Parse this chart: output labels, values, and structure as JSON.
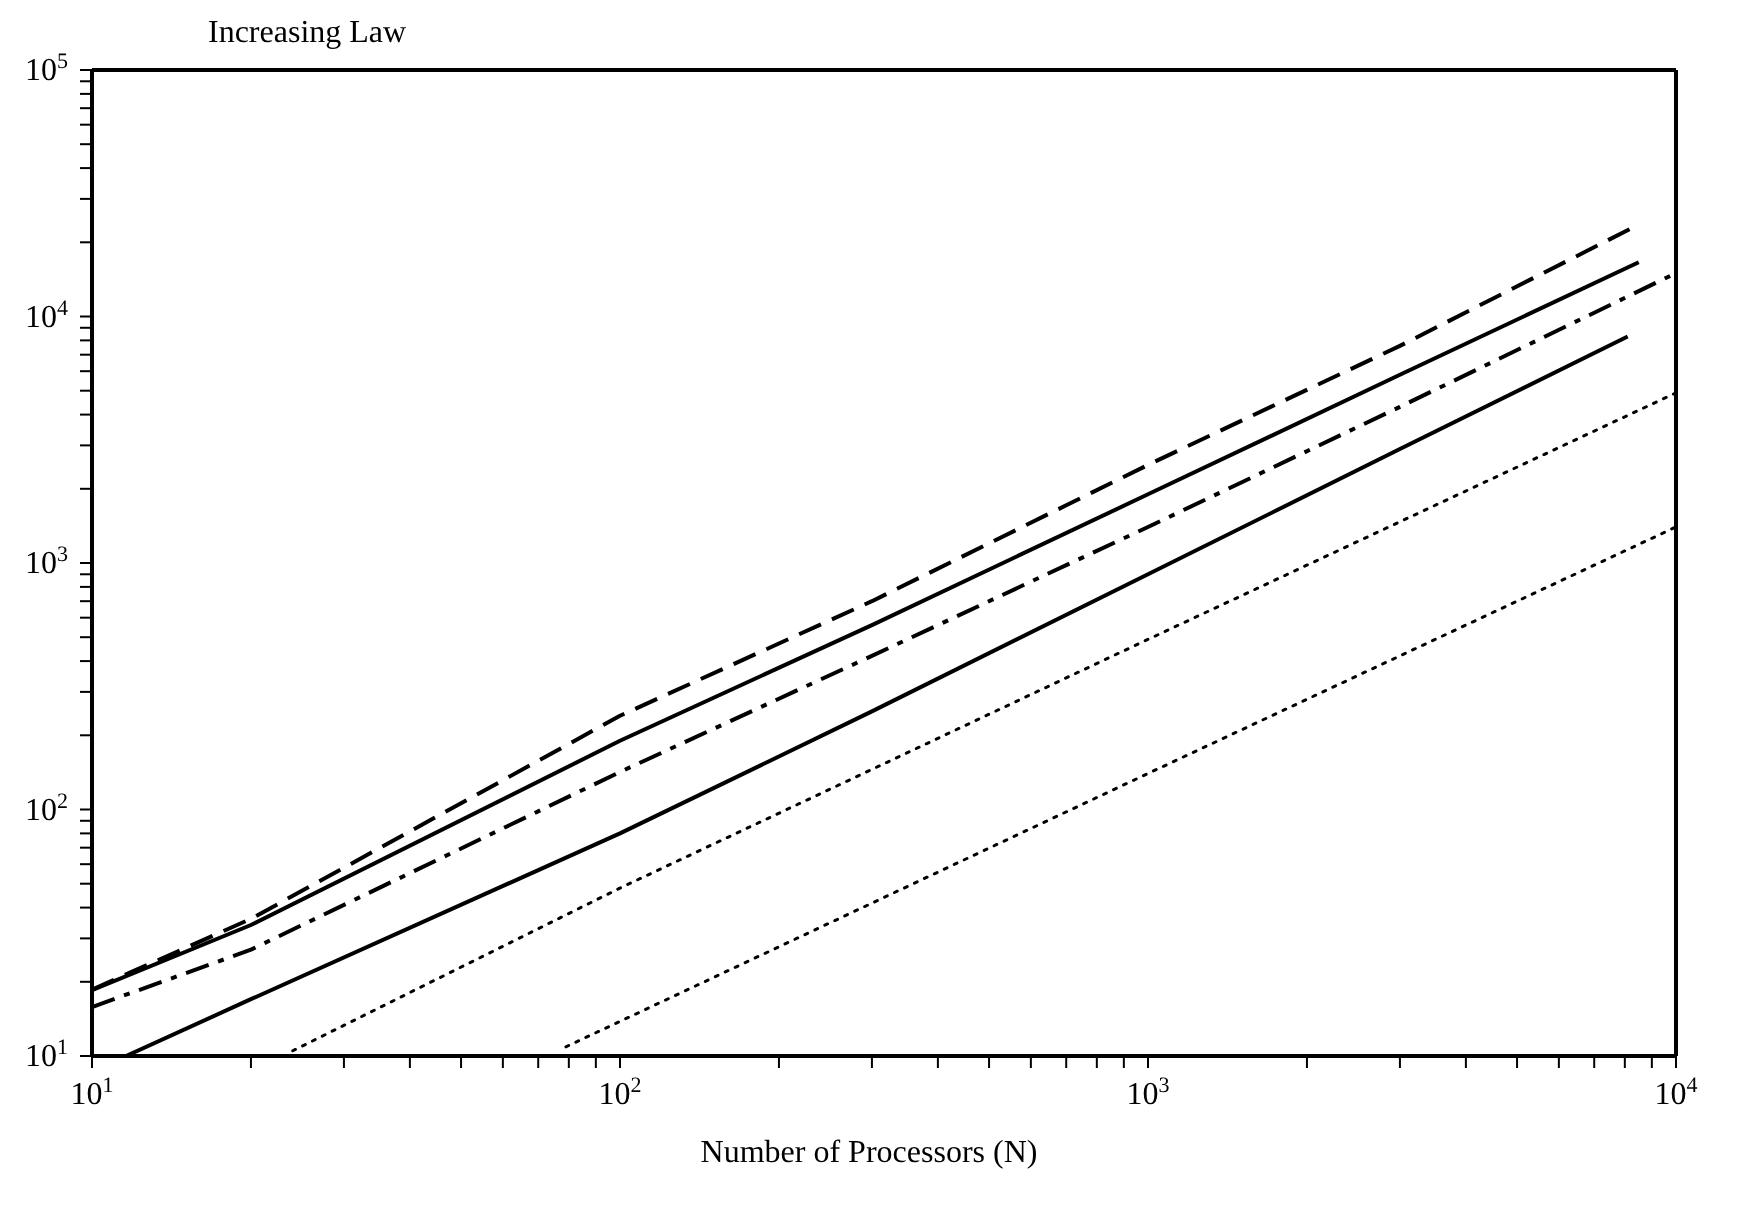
{
  "chart_data": {
    "type": "line",
    "title": "Increasing Law",
    "xlabel": "Number of Processors (N)",
    "log": "xy",
    "marker": "none",
    "xlim": [
      10,
      10000
    ],
    "ylim": [
      10,
      100000
    ],
    "xticks": [
      {
        "value": 10,
        "label": "10$^{1}$"
      },
      {
        "value": 20,
        "label": null
      },
      {
        "value": 30,
        "label": null
      },
      {
        "value": 40,
        "label": null
      },
      {
        "value": 50,
        "label": null
      },
      {
        "value": 60,
        "label": null
      },
      {
        "value": 70,
        "label": null
      },
      {
        "value": 80,
        "label": null
      },
      {
        "value": 90,
        "label": null
      },
      {
        "value": 100,
        "label": "10$^{2}$"
      },
      {
        "value": 200,
        "label": null
      },
      {
        "value": 300,
        "label": null
      },
      {
        "value": 400,
        "label": null
      },
      {
        "value": 500,
        "label": null
      },
      {
        "value": 600,
        "label": null
      },
      {
        "value": 700,
        "label": null
      },
      {
        "value": 800,
        "label": null
      },
      {
        "value": 900,
        "label": null
      },
      {
        "value": 1000,
        "label": "10$^{3}$"
      },
      {
        "value": 2000,
        "label": null
      },
      {
        "value": 3000,
        "label": null
      },
      {
        "value": 4000,
        "label": null
      },
      {
        "value": 5000,
        "label": null
      },
      {
        "value": 6000,
        "label": null
      },
      {
        "value": 7000,
        "label": null
      },
      {
        "value": 8000,
        "label": null
      },
      {
        "value": 9000,
        "label": null
      },
      {
        "value": 10000,
        "label": "10$^{4}$"
      }
    ],
    "yticks": [
      {
        "value": 10,
        "label": "10$^{1}$"
      },
      {
        "value": 20,
        "label": null
      },
      {
        "value": 30,
        "label": null
      },
      {
        "value": 40,
        "label": null
      },
      {
        "value": 50,
        "label": null
      },
      {
        "value": 60,
        "label": null
      },
      {
        "value": 70,
        "label": null
      },
      {
        "value": 80,
        "label": null
      },
      {
        "value": 90,
        "label": null
      },
      {
        "value": 100,
        "label": "10$^{2}$"
      },
      {
        "value": 200,
        "label": null
      },
      {
        "value": 300,
        "label": null
      },
      {
        "value": 400,
        "label": null
      },
      {
        "value": 500,
        "label": null
      },
      {
        "value": 600,
        "label": null
      },
      {
        "value": 700,
        "label": null
      },
      {
        "value": 800,
        "label": null
      },
      {
        "value": 900,
        "label": null
      },
      {
        "value": 1000,
        "label": "10$^{3}$"
      },
      {
        "value": 2000,
        "label": null
      },
      {
        "value": 3000,
        "label": null
      },
      {
        "value": 4000,
        "label": null
      },
      {
        "value": 5000,
        "label": null
      },
      {
        "value": 6000,
        "label": null
      },
      {
        "value": 7000,
        "label": null
      },
      {
        "value": 8000,
        "label": null
      },
      {
        "value": 9000,
        "label": null
      },
      {
        "value": 10000,
        "label": "10$^{4}$"
      },
      {
        "value": 20000,
        "label": null
      },
      {
        "value": 30000,
        "label": null
      },
      {
        "value": 40000,
        "label": null
      },
      {
        "value": 50000,
        "label": null
      },
      {
        "value": 60000,
        "label": null
      },
      {
        "value": 70000,
        "label": null
      },
      {
        "value": 80000,
        "label": null
      },
      {
        "value": 90000,
        "label": null
      },
      {
        "value": 100000,
        "label": "10$^{5}$"
      }
    ],
    "series": [
      {
        "color": "#000000",
        "line_style": "dashed",
        "x": [
          10,
          20,
          100,
          300,
          1000,
          3000,
          8300
        ],
        "values": [
          18.6,
          36,
          240,
          700,
          2500,
          7600,
          23000
        ]
      },
      {
        "color": "#000000",
        "line_style": "solid",
        "x": [
          10,
          20,
          100,
          300,
          1000,
          3000,
          8500
        ],
        "values": [
          18.5,
          34,
          190,
          560,
          1900,
          5800,
          16600
        ]
      },
      {
        "color": "#000000",
        "line_style": "dashdot",
        "x": [
          10,
          20,
          100,
          300,
          1000,
          3000,
          10000
        ],
        "values": [
          15.8,
          27,
          142,
          420,
          1400,
          4300,
          15000
        ]
      },
      {
        "color": "#000000",
        "line_style": "solid",
        "x": [
          11.6,
          20,
          100,
          300,
          1000,
          3000,
          8100
        ],
        "values": [
          10,
          17,
          80,
          250,
          900,
          2900,
          8300
        ]
      },
      {
        "color": "#000000",
        "line_style": "dotted",
        "x": [
          24,
          100,
          1000,
          10000
        ],
        "values": [
          10.5,
          48,
          490,
          4900
        ]
      },
      {
        "color": "#000000",
        "line_style": "dotted",
        "x": [
          79,
          1000,
          10000
        ],
        "values": [
          10.9,
          140,
          1400
        ]
      }
    ]
  }
}
